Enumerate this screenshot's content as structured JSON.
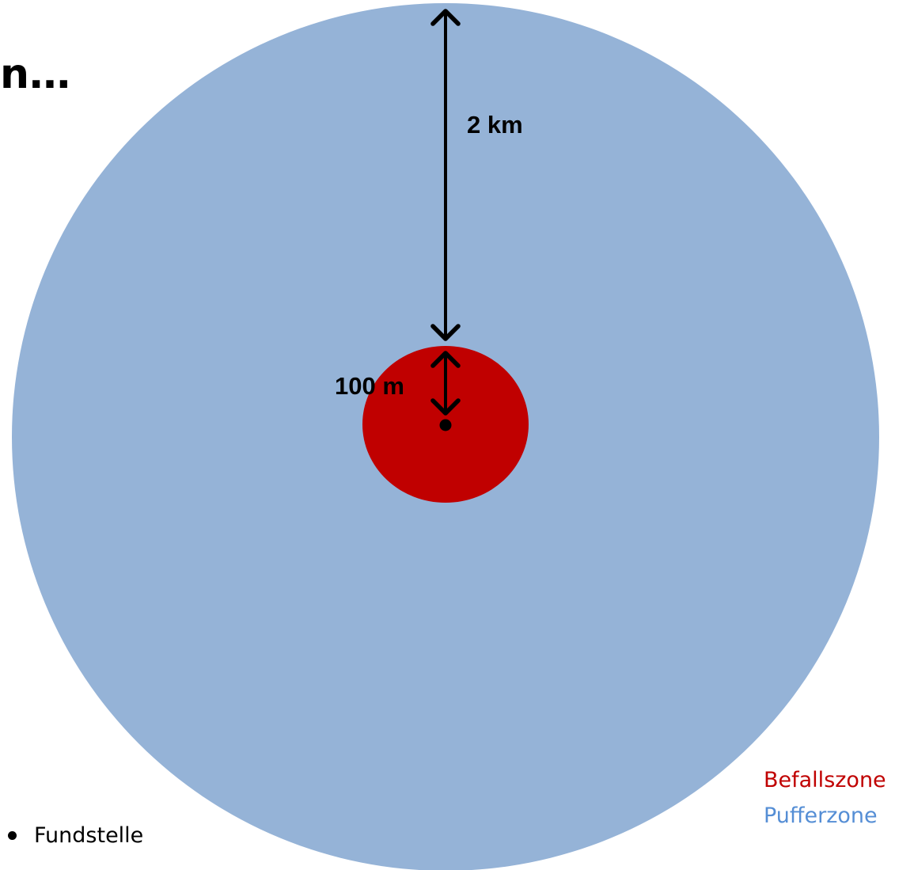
{
  "title_fragment": "n…",
  "colors": {
    "buffer_zone": "#95b3d7",
    "infestation_zone": "#c00000",
    "arrow": "#000000",
    "legend_befall": "#c00000",
    "legend_puffer": "#558ed5"
  },
  "labels": {
    "outer_distance": "2 km",
    "inner_distance": "100 m"
  },
  "legend": {
    "befallszone": "Befallszone",
    "pufferzone": "Pufferzone",
    "fundstelle": "Fundstelle"
  }
}
